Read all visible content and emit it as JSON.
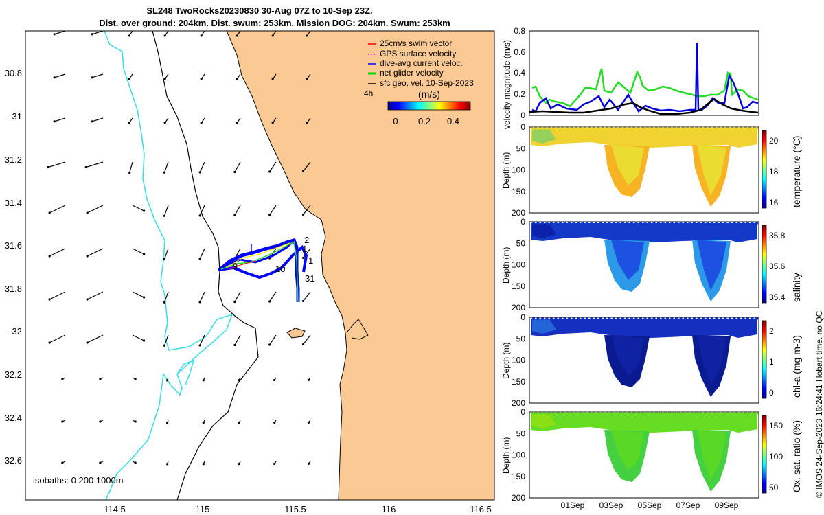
{
  "title": {
    "line1": "SL248 TwoRocks20230830 30-Aug 07Z to 10-Sep 23Z.",
    "line2": "Dist. over ground: 204km. Dist. swum: 253km. Mission DOG: 204km. Swum: 253km"
  },
  "map": {
    "lon_ticks": [
      "114.5",
      "115",
      "115.5",
      "116",
      "116.5"
    ],
    "lat_ticks": [
      "30.8",
      "-31",
      "31.2",
      "31.4",
      "31.6",
      "31.8",
      "-32",
      "32.2",
      "32.4",
      "32.6"
    ],
    "legend": [
      {
        "label": "25cm/s swim vector",
        "color": "#ff0000"
      },
      {
        "label": "GPS surface velocity",
        "color": "#ff00ff"
      },
      {
        "label": "dive-avg current veloc.",
        "color": "#0000ff"
      },
      {
        "label": "net glider velocity",
        "color": "#00dd00"
      },
      {
        "label": "sfc geo. vel. 10-Sep-2023",
        "color": "#000000"
      }
    ],
    "legend_timestep": "4h",
    "colorbar_title": "(m/s)",
    "colorbar_ticks": [
      "0",
      "0.2",
      "0.4"
    ],
    "track_labels": [
      "2",
      "1",
      "1",
      "10",
      "31",
      "9"
    ],
    "isobaths_label": "isobaths: 0   200  1000m",
    "colors": {
      "land": "#fbc994",
      "isobath200": "#000000",
      "isobath1000": "#33dde8",
      "track": "#0000ff"
    }
  },
  "panels": {
    "velocity": {
      "ylabel": "velocity magnitude (m/s)",
      "yticks": [
        "0",
        "0.2",
        "0.4",
        "0.6",
        "0.8"
      ],
      "series": [
        {
          "name": "net glider velocity",
          "color": "#22dd22"
        },
        {
          "name": "dive-avg current veloc.",
          "color": "#0000dd"
        },
        {
          "name": "sfc geo. vel.",
          "color": "#000000"
        }
      ]
    },
    "depth_yticks": [
      "0",
      "50",
      "100",
      "150",
      "200"
    ],
    "depth_ylabel": "Depth (m)",
    "temperature": {
      "label": "temperature (°C)",
      "ticks": [
        "20",
        "18",
        "16"
      ]
    },
    "salinity": {
      "label": "salinity",
      "ticks": [
        "35.8",
        "35.6",
        "35.4"
      ]
    },
    "chla": {
      "label": "chl-a (mg m-3)",
      "ticks": [
        "2",
        "1",
        "0"
      ]
    },
    "oxygen": {
      "label": "Ox. sat. ratio (%)",
      "ticks": [
        "150",
        "100",
        "50"
      ]
    },
    "time_ticks": [
      "01Sep",
      "03Sep",
      "05Sep",
      "07Sep",
      "09Sep"
    ]
  },
  "footer_note": "© IMOS 24-Sep-2023 16:24:41 Hobart time. no QC"
}
